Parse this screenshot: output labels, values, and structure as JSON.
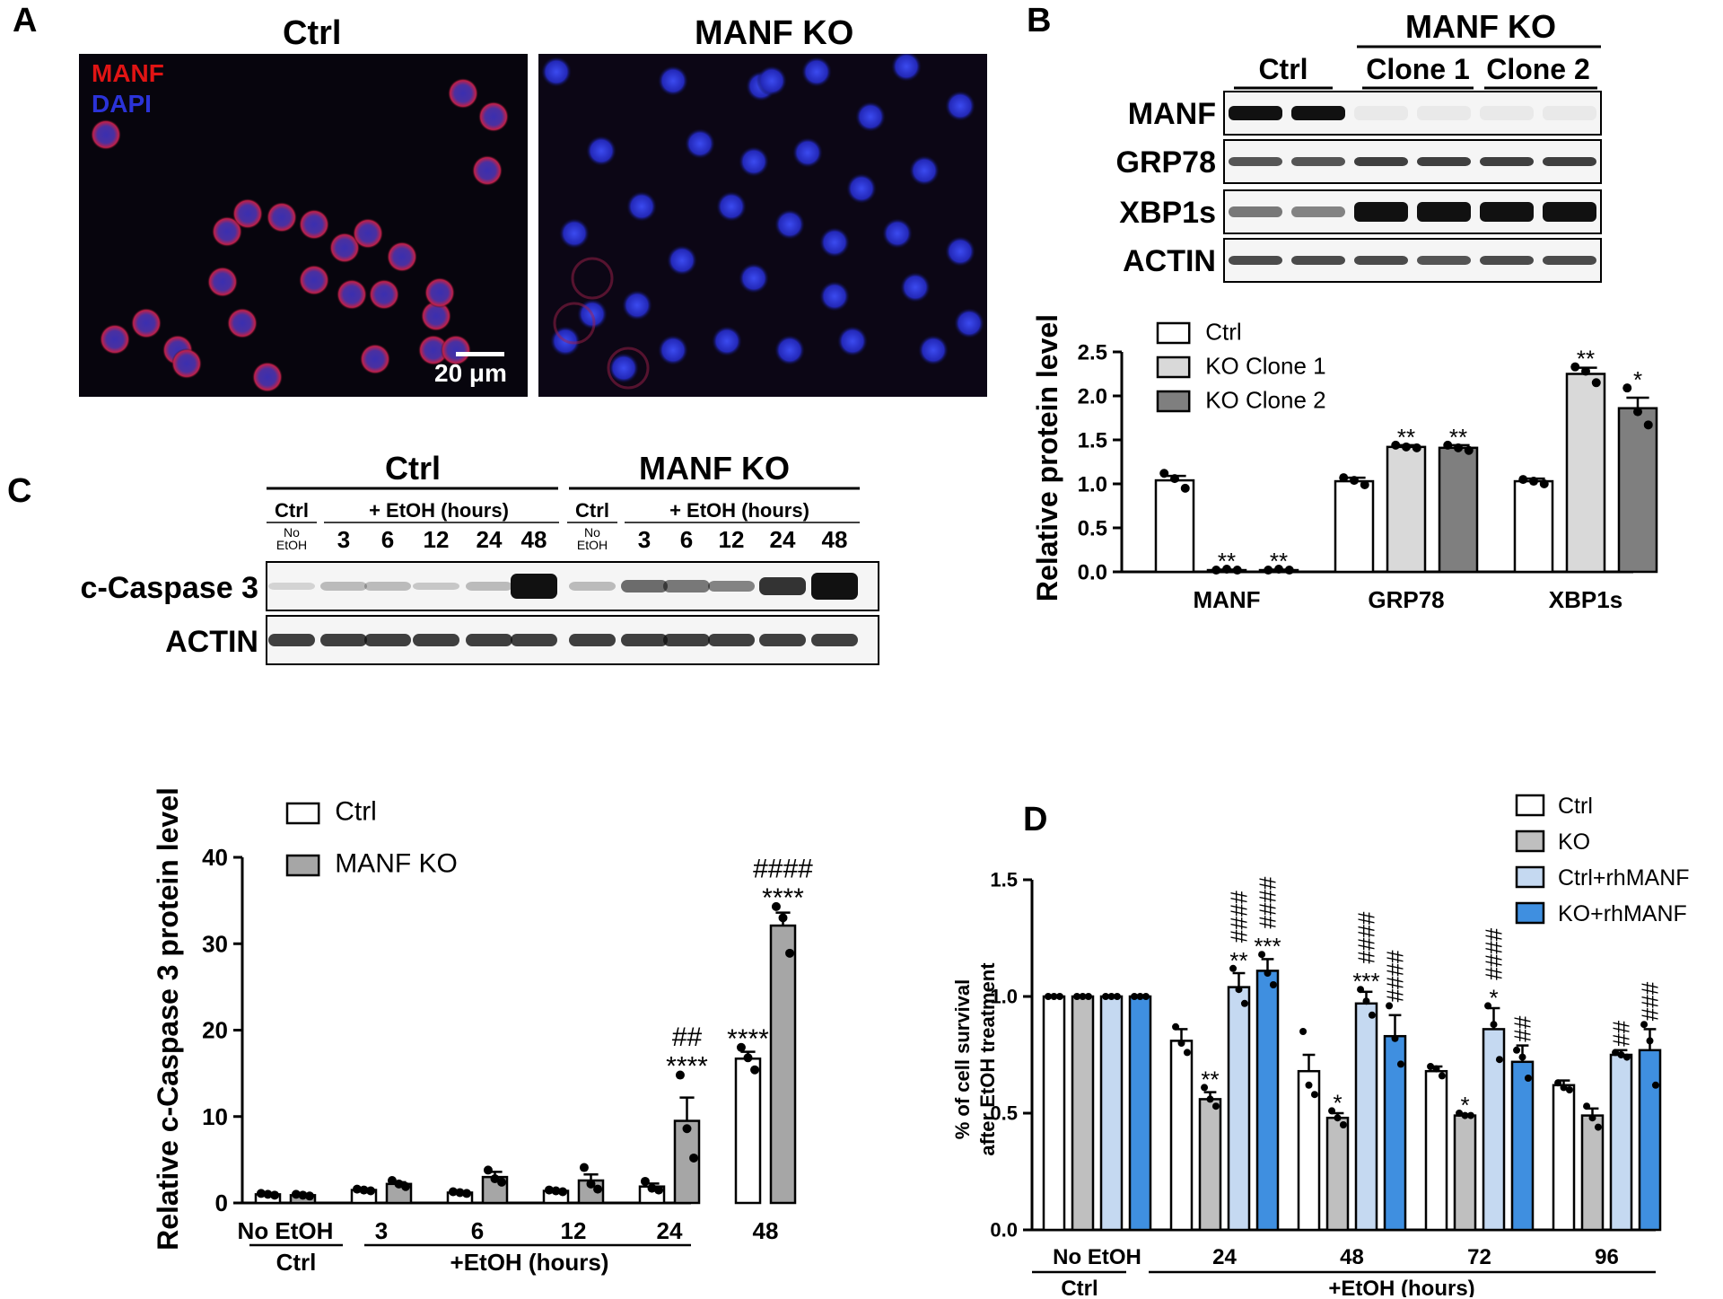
{
  "panels": {
    "A": {
      "letter": "A",
      "ctrl_title": "Ctrl",
      "ko_title": "MANF KO",
      "stain1": "MANF",
      "stain2": "DAPI",
      "scale": "20 μm",
      "stain1_color": "#e01414",
      "stain2_color": "#2b33d8"
    },
    "B": {
      "letter": "B",
      "blot_ctrl": "Ctrl",
      "blot_ko": "MANF KO",
      "clone1": "Clone 1",
      "clone2": "Clone 2",
      "rows": [
        "MANF",
        "GRP78",
        "XBP1s",
        "ACTIN"
      ]
    },
    "C": {
      "letter": "C",
      "blot_ctrl": "Ctrl",
      "blot_ko": "MANF KO",
      "lane_ctrl": "Ctrl",
      "no_etoh_1": "No",
      "no_etoh_2": "EtOH",
      "etoh_hours": "+ EtOH (hours)",
      "time_lanes": [
        "3",
        "6",
        "12",
        "24",
        "48"
      ],
      "rows": [
        "c-Caspase 3",
        "ACTIN"
      ]
    },
    "D": {
      "letter": "D"
    }
  },
  "chart_data": [
    {
      "id": "B",
      "type": "bar",
      "categories": [
        "MANF",
        "GRP78",
        "XBP1s"
      ],
      "ylabel": "Relative protein level",
      "ylim": [
        0,
        2.5
      ],
      "yticks": [
        "0.0",
        "0.5",
        "1.0",
        "1.5",
        "2.0",
        "2.5"
      ],
      "legend_position": "top-left",
      "series": [
        {
          "name": "Ctrl",
          "color": "#ffffff",
          "values": [
            1.04,
            1.03,
            1.03
          ],
          "err": [
            0.05,
            0.04,
            0.03
          ],
          "points": [
            [
              1.12,
              1.06,
              0.95
            ],
            [
              1.07,
              1.04,
              0.99
            ],
            [
              1.05,
              1.03,
              1.0
            ]
          ],
          "sig": [
            "",
            "",
            ""
          ]
        },
        {
          "name": "KO Clone 1",
          "color": "#d9d9d9",
          "values": [
            0.02,
            1.42,
            2.25
          ],
          "err": [
            0.005,
            0.02,
            0.07
          ],
          "points": [
            [
              0.02,
              0.03,
              0.02
            ],
            [
              1.44,
              1.42,
              1.41
            ],
            [
              2.33,
              2.28,
              2.15
            ]
          ],
          "sig": [
            "**",
            "**",
            "**"
          ]
        },
        {
          "name": "KO Clone 2",
          "color": "#7f7f7f",
          "values": [
            0.02,
            1.41,
            1.86
          ],
          "err": [
            0.005,
            0.03,
            0.12
          ],
          "points": [
            [
              0.02,
              0.03,
              0.02
            ],
            [
              1.44,
              1.41,
              1.38
            ],
            [
              2.09,
              1.82,
              1.67
            ]
          ],
          "sig": [
            "**",
            "**",
            "*"
          ]
        }
      ]
    },
    {
      "id": "C",
      "type": "bar",
      "categories": [
        "No EtOH",
        "3",
        "6",
        "12",
        "24",
        "48"
      ],
      "group_label_ctrl": "Ctrl",
      "group_label_etoh": "+EtOH (hours)",
      "ylabel": "Relative c-Caspase 3 protein level",
      "ylim": [
        0,
        40
      ],
      "yticks": [
        "0",
        "10",
        "20",
        "30",
        "40"
      ],
      "legend_position": "top-left",
      "series": [
        {
          "name": "Ctrl",
          "color": "#ffffff",
          "values": [
            1.0,
            1.5,
            1.2,
            1.4,
            1.9,
            16.7
          ],
          "err": [
            0.1,
            0.15,
            0.1,
            0.1,
            0.35,
            0.8
          ],
          "points": [
            [
              1.1,
              1.0,
              0.9
            ],
            [
              1.6,
              1.5,
              1.4
            ],
            [
              1.3,
              1.2,
              1.1
            ],
            [
              1.5,
              1.4,
              1.3
            ],
            [
              2.5,
              1.7,
              1.5
            ],
            [
              18.0,
              16.8,
              15.4
            ]
          ],
          "sig": [
            "",
            "",
            "",
            "",
            "",
            "****"
          ],
          "sig2": [
            "",
            "",
            "",
            "",
            "",
            ""
          ]
        },
        {
          "name": "MANF KO",
          "color": "#a6a6a6",
          "values": [
            0.9,
            2.2,
            3.0,
            2.6,
            9.5,
            32.1
          ],
          "err": [
            0.1,
            0.2,
            0.6,
            0.7,
            2.7,
            1.5
          ],
          "points": [
            [
              1.0,
              0.9,
              0.8
            ],
            [
              2.6,
              2.2,
              1.9
            ],
            [
              3.8,
              2.8,
              2.4
            ],
            [
              4.1,
              2.2,
              1.6
            ],
            [
              14.8,
              8.6,
              5.2
            ],
            [
              34.3,
              33.0,
              28.9
            ]
          ],
          "sig": [
            "",
            "",
            "",
            "",
            "****",
            "****"
          ],
          "sig2": [
            "",
            "",
            "",
            "",
            "##",
            "####"
          ]
        }
      ]
    },
    {
      "id": "D",
      "type": "bar",
      "categories": [
        "No EtOH",
        "24",
        "48",
        "72",
        "96"
      ],
      "group_label_ctrl": "Ctrl",
      "group_label_etoh": "+EtOH (hours)",
      "ylabel": "% of cell survival",
      "ylabel2": "after EtOH treatment",
      "ylim": [
        0,
        1.5
      ],
      "yticks": [
        "0.0",
        "0.5",
        "1.0",
        "1.5"
      ],
      "legend_position": "top-right",
      "series": [
        {
          "name": "Ctrl",
          "color": "#ffffff",
          "values": [
            1.0,
            0.81,
            0.68,
            0.68,
            0.62
          ],
          "err": [
            0,
            0.05,
            0.07,
            0.02,
            0.02
          ],
          "points": [
            [
              1,
              1,
              1
            ],
            [
              0.87,
              0.8,
              0.76
            ],
            [
              0.85,
              0.62,
              0.58
            ],
            [
              0.7,
              0.69,
              0.66
            ],
            [
              0.63,
              0.61,
              0.6
            ]
          ],
          "sig": [
            "",
            "",
            "",
            "",
            ""
          ],
          "sig2": [
            "",
            "",
            "",
            "",
            ""
          ]
        },
        {
          "name": "KO",
          "color": "#bfbfbf",
          "values": [
            1.0,
            0.56,
            0.48,
            0.49,
            0.49
          ],
          "err": [
            0,
            0.03,
            0.02,
            0.005,
            0.03
          ],
          "points": [
            [
              1,
              1,
              1
            ],
            [
              0.61,
              0.56,
              0.53
            ],
            [
              0.51,
              0.48,
              0.45
            ],
            [
              0.5,
              0.49,
              0.49
            ],
            [
              0.53,
              0.48,
              0.44
            ]
          ],
          "sig": [
            "",
            "**",
            "*",
            "*",
            ""
          ],
          "sig2": [
            "",
            "",
            "",
            "",
            ""
          ]
        },
        {
          "name": "Ctrl+rhMANF",
          "color": "#c5d9f1",
          "values": [
            1.0,
            1.04,
            0.97,
            0.86,
            0.75
          ],
          "err": [
            0,
            0.06,
            0.05,
            0.09,
            0.02
          ],
          "points": [
            [
              1,
              1,
              1
            ],
            [
              1.12,
              1.03,
              0.97
            ],
            [
              1.03,
              0.98,
              0.92
            ],
            [
              0.96,
              0.88,
              0.73
            ],
            [
              0.76,
              0.75,
              0.74
            ]
          ],
          "sig": [
            "",
            "**",
            "***",
            "*",
            ""
          ],
          "sig2": [
            "",
            "####",
            "####",
            "####",
            "##"
          ]
        },
        {
          "name": "KO+rhMANF",
          "color": "#3f8fe0",
          "values": [
            1.0,
            1.11,
            0.83,
            0.72,
            0.77
          ],
          "err": [
            0,
            0.05,
            0.09,
            0.07,
            0.09
          ],
          "points": [
            [
              1,
              1,
              1
            ],
            [
              1.18,
              1.1,
              1.05
            ],
            [
              0.96,
              0.82,
              0.71
            ],
            [
              0.77,
              0.74,
              0.65
            ],
            [
              0.88,
              0.81,
              0.62
            ]
          ],
          "sig": [
            "",
            "***",
            "",
            "",
            ""
          ],
          "sig2": [
            "",
            "####",
            "####",
            "##",
            "###"
          ]
        }
      ]
    }
  ]
}
